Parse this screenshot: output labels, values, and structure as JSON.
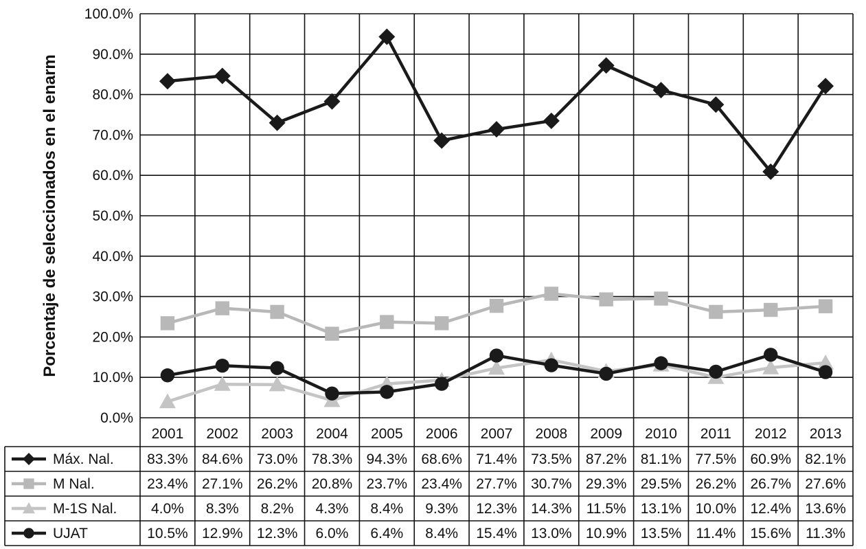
{
  "chart_data": {
    "type": "line",
    "title": "",
    "xlabel": "",
    "ylabel": "Porcentaje de seleccionados en el enarm",
    "ylim": [
      0,
      100
    ],
    "y_ticks": [
      "0.0%",
      "10.0%",
      "20.0%",
      "30.0%",
      "40.0%",
      "50.0%",
      "60.0%",
      "70.0%",
      "80.0%",
      "90.0%",
      "100.0%"
    ],
    "grid": true,
    "legend": "in data table below plot (left column)",
    "categories": [
      "2001",
      "2002",
      "2003",
      "2004",
      "2005",
      "2006",
      "2007",
      "2008",
      "2009",
      "2010",
      "2011",
      "2012",
      "2013"
    ],
    "series": [
      {
        "name": "Máx. Nal.",
        "marker": "diamond",
        "color": "#1a1a1a",
        "values": [
          83.3,
          84.6,
          73.0,
          78.3,
          94.3,
          68.6,
          71.4,
          73.5,
          87.2,
          81.1,
          77.5,
          60.9,
          82.1
        ],
        "labels": [
          "83.3%",
          "84.6%",
          "73.0%",
          "78.3%",
          "94.3%",
          "68.6%",
          "71.4%",
          "73.5%",
          "87.2%",
          "81.1%",
          "77.5%",
          "60.9%",
          "82.1%"
        ]
      },
      {
        "name": "M Nal.",
        "marker": "square",
        "color": "#b8b8b8",
        "values": [
          23.4,
          27.1,
          26.2,
          20.8,
          23.7,
          23.4,
          27.7,
          30.7,
          29.3,
          29.5,
          26.2,
          26.7,
          27.6
        ],
        "labels": [
          "23.4%",
          "27.1%",
          "26.2%",
          "20.8%",
          "23.7%",
          "23.4%",
          "27.7%",
          "30.7%",
          "29.3%",
          "29.5%",
          "26.2%",
          "26.7%",
          "27.6%"
        ]
      },
      {
        "name": "M-1S Nal.",
        "marker": "triangle",
        "color": "#c4c4c4",
        "values": [
          4.0,
          8.3,
          8.2,
          4.3,
          8.4,
          9.3,
          12.3,
          14.3,
          11.5,
          13.1,
          10.0,
          12.4,
          13.6
        ],
        "labels": [
          "4.0%",
          "8.3%",
          "8.2%",
          "4.3%",
          "8.4%",
          "9.3%",
          "12.3%",
          "14.3%",
          "11.5%",
          "13.1%",
          "10.0%",
          "12.4%",
          "13.6%"
        ]
      },
      {
        "name": "UJAT",
        "marker": "circle",
        "color": "#1a1a1a",
        "values": [
          10.5,
          12.9,
          12.3,
          6.0,
          6.4,
          8.4,
          15.4,
          13.0,
          10.9,
          13.5,
          11.4,
          15.6,
          11.3
        ],
        "labels": [
          "10.5%",
          "12.9%",
          "12.3%",
          "6.0%",
          "6.4%",
          "8.4%",
          "15.4%",
          "13.0%",
          "10.9%",
          "13.5%",
          "11.4%",
          "15.6%",
          "11.3%"
        ]
      }
    ]
  }
}
